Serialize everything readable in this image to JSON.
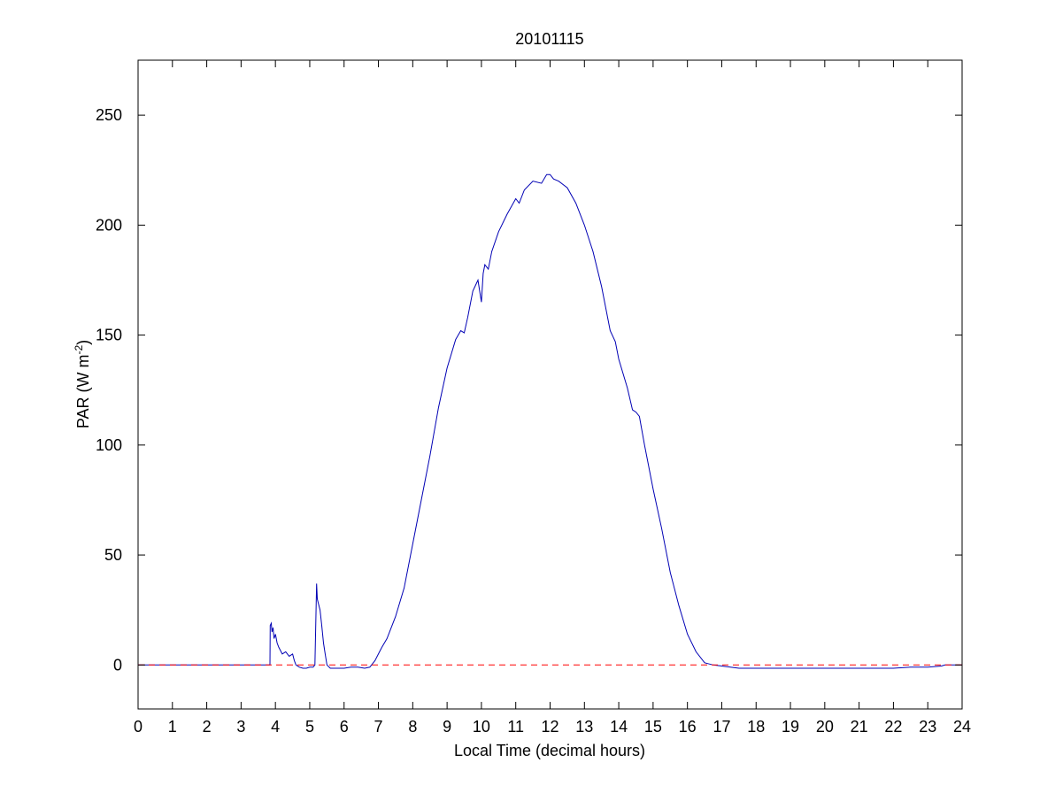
{
  "chart_data": {
    "type": "line",
    "title": "20101115",
    "xlabel": "Local Time (decimal hours)",
    "ylabel": {
      "prefix": "PAR (W m",
      "superscript": "-2",
      "suffix": ")"
    },
    "xlim": [
      0,
      24
    ],
    "ylim": [
      -20,
      275
    ],
    "xticks": [
      0,
      1,
      2,
      3,
      4,
      5,
      6,
      7,
      8,
      9,
      10,
      11,
      12,
      13,
      14,
      15,
      16,
      17,
      18,
      19,
      20,
      21,
      22,
      23,
      24
    ],
    "yticks": [
      0,
      50,
      100,
      150,
      200,
      250
    ],
    "grid": false,
    "legend": "none",
    "series": [
      {
        "color": "#0000b4",
        "style": "solid",
        "x": [
          0,
          3.84,
          3.85,
          3.88,
          3.9,
          3.93,
          3.96,
          4.0,
          4.05,
          4.1,
          4.2,
          4.3,
          4.4,
          4.5,
          4.55,
          4.6,
          4.7,
          4.8,
          4.9,
          5.0,
          5.1,
          5.15,
          5.2,
          5.22,
          5.25,
          5.3,
          5.35,
          5.4,
          5.45,
          5.5,
          5.6,
          5.8,
          6.0,
          6.2,
          6.4,
          6.6,
          6.75,
          6.9,
          7.0,
          7.1,
          7.25,
          7.5,
          7.75,
          8.0,
          8.25,
          8.5,
          8.75,
          9.0,
          9.25,
          9.4,
          9.5,
          9.6,
          9.75,
          9.9,
          10.0,
          10.05,
          10.1,
          10.2,
          10.3,
          10.5,
          10.75,
          11.0,
          11.1,
          11.25,
          11.5,
          11.75,
          11.9,
          12.0,
          12.1,
          12.25,
          12.5,
          12.75,
          13.0,
          13.25,
          13.5,
          13.75,
          13.9,
          14.0,
          14.25,
          14.4,
          14.5,
          14.6,
          14.75,
          15.0,
          15.25,
          15.5,
          15.75,
          16.0,
          16.25,
          16.5,
          16.75,
          17.0,
          17.25,
          17.5,
          18.0,
          18.5,
          19.0,
          20.0,
          21.0,
          22.0,
          22.5,
          23.0,
          23.4,
          23.5,
          24.0
        ],
        "y": [
          0,
          0,
          18,
          19,
          15,
          17,
          12,
          14,
          10,
          8,
          5,
          6,
          4,
          5,
          2,
          0,
          -1,
          -1.5,
          -1.5,
          -1,
          -1,
          0,
          37,
          30,
          28,
          25,
          18,
          10,
          5,
          0,
          -1.5,
          -1.5,
          -1.5,
          -1,
          -1,
          -1.5,
          -1,
          2,
          5,
          8,
          12,
          22,
          35,
          55,
          75,
          95,
          117,
          135,
          148,
          152,
          151,
          158,
          170,
          175,
          165,
          178,
          182,
          180,
          188,
          197,
          205,
          212,
          210,
          216,
          220,
          219,
          223,
          223,
          221,
          220,
          217,
          210,
          200,
          188,
          172,
          152,
          147,
          139,
          126,
          116,
          115,
          113,
          100,
          80,
          62,
          42,
          27,
          14,
          6,
          1,
          0,
          -0.5,
          -1,
          -1.5,
          -1.5,
          -1.5,
          -1.5,
          -1.5,
          -1.5,
          -1.5,
          -1,
          -1,
          -0.5,
          0,
          0
        ]
      },
      {
        "color": "#ff0000",
        "style": "dashed",
        "x": [
          0,
          24
        ],
        "y": [
          0,
          0
        ]
      }
    ]
  }
}
